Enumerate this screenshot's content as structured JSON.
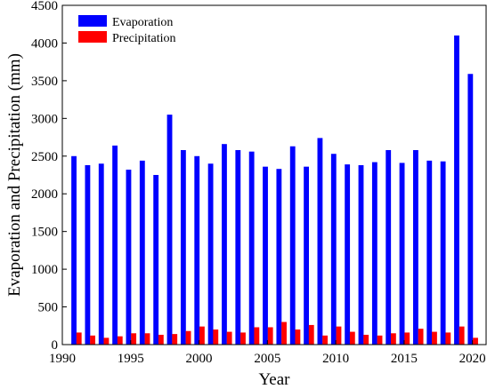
{
  "chart_data": {
    "type": "bar",
    "xlabel": "Year",
    "ylabel": "Evaporation and Precipitation (mm)",
    "xlim": [
      1990,
      2021
    ],
    "ylim": [
      0,
      4500
    ],
    "xticks": [
      1990,
      1995,
      2000,
      2005,
      2010,
      2015,
      2020
    ],
    "yticks": [
      0,
      500,
      1000,
      1500,
      2000,
      2500,
      3000,
      3500,
      4000,
      4500
    ],
    "grid": false,
    "legend": "top-left",
    "x": [
      1991,
      1992,
      1993,
      1994,
      1995,
      1996,
      1997,
      1998,
      1999,
      2000,
      2001,
      2002,
      2003,
      2004,
      2005,
      2006,
      2007,
      2008,
      2009,
      2010,
      2011,
      2012,
      2013,
      2014,
      2015,
      2016,
      2017,
      2018,
      2019,
      2020
    ],
    "series": [
      {
        "name": "Evaporation",
        "color": "#0000ff",
        "values": [
          2500,
          2380,
          2400,
          2640,
          2320,
          2440,
          2250,
          3050,
          2580,
          2500,
          2400,
          2660,
          2580,
          2560,
          2360,
          2330,
          2630,
          2360,
          2740,
          2530,
          2390,
          2380,
          2420,
          2580,
          2410,
          2580,
          2440,
          2430,
          4100,
          3590
        ]
      },
      {
        "name": "Precipitation",
        "color": "#ff0000",
        "values": [
          160,
          120,
          90,
          110,
          150,
          150,
          130,
          140,
          180,
          240,
          200,
          170,
          160,
          230,
          230,
          300,
          200,
          260,
          120,
          240,
          170,
          130,
          120,
          150,
          160,
          210,
          170,
          160,
          240,
          90
        ]
      }
    ]
  }
}
